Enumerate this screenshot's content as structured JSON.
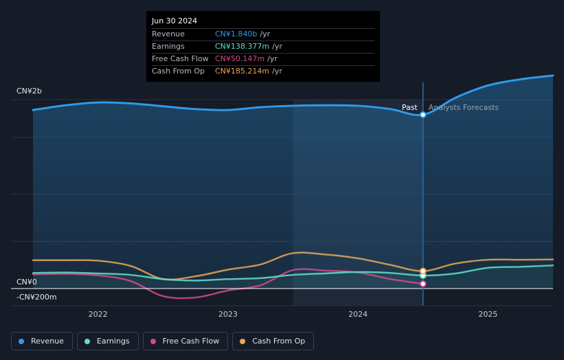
{
  "tooltip": {
    "date": "Jun 30 2024",
    "rows": [
      {
        "label": "Revenue",
        "value": "CN¥1.840b",
        "unit": "/yr"
      },
      {
        "label": "Earnings",
        "value": "CN¥138.377m",
        "unit": "/yr"
      },
      {
        "label": "Free Cash Flow",
        "value": "CN¥50.147m",
        "unit": "/yr"
      },
      {
        "label": "Cash From Op",
        "value": "CN¥185.214m",
        "unit": "/yr"
      }
    ]
  },
  "legend": {
    "items": [
      {
        "label": "Revenue"
      },
      {
        "label": "Earnings"
      },
      {
        "label": "Free Cash Flow"
      },
      {
        "label": "Cash From Op"
      }
    ]
  },
  "colors": {
    "revenue": "#2d9be8",
    "earnings": "#5fe0c8",
    "fcf": "#d24a8a",
    "cfo": "#e8a65a",
    "past_label": "#ffffff",
    "forecast_label": "#9aa0ab"
  },
  "chart_data": {
    "type": "line",
    "title": "",
    "xlabel": "",
    "ylabel": "",
    "unit": "CN¥ millions",
    "y_tick_labels": [
      {
        "value": 2000,
        "label": "CN¥2b"
      },
      {
        "value": 0,
        "label": "CN¥0"
      },
      {
        "value": -200,
        "label": "-CN¥200m"
      }
    ],
    "ylim": [
      -200,
      2400
    ],
    "xlim": [
      2021.5,
      2025.5
    ],
    "x_ticks": [
      {
        "value": 2022,
        "label": "2022"
      },
      {
        "value": 2023,
        "label": "2023"
      },
      {
        "value": 2024,
        "label": "2024"
      },
      {
        "value": 2025,
        "label": "2025"
      }
    ],
    "past_label": "Past",
    "forecast_label": "Analysts Forecasts",
    "past_highlight_start": 2023.5,
    "divider_x": 2024.5,
    "highlight_date": 2024.5,
    "series": [
      {
        "name": "Revenue",
        "key": "revenue",
        "points": [
          [
            2021.5,
            1890
          ],
          [
            2021.75,
            1940
          ],
          [
            2022.0,
            1970
          ],
          [
            2022.25,
            1960
          ],
          [
            2022.5,
            1930
          ],
          [
            2022.75,
            1900
          ],
          [
            2023.0,
            1890
          ],
          [
            2023.25,
            1920
          ],
          [
            2023.5,
            1935
          ],
          [
            2023.75,
            1940
          ],
          [
            2024.0,
            1935
          ],
          [
            2024.25,
            1900
          ],
          [
            2024.5,
            1840
          ],
          [
            2024.75,
            2020
          ],
          [
            2025.0,
            2150
          ],
          [
            2025.25,
            2215
          ],
          [
            2025.5,
            2255
          ]
        ]
      },
      {
        "name": "Earnings",
        "key": "earnings",
        "points": [
          [
            2021.5,
            165
          ],
          [
            2021.75,
            170
          ],
          [
            2022.0,
            160
          ],
          [
            2022.25,
            145
          ],
          [
            2022.5,
            100
          ],
          [
            2022.75,
            85
          ],
          [
            2023.0,
            100
          ],
          [
            2023.25,
            110
          ],
          [
            2023.5,
            145
          ],
          [
            2023.75,
            160
          ],
          [
            2024.0,
            175
          ],
          [
            2024.25,
            165
          ],
          [
            2024.5,
            138
          ],
          [
            2024.75,
            160
          ],
          [
            2025.0,
            220
          ],
          [
            2025.25,
            230
          ],
          [
            2025.5,
            245
          ]
        ]
      },
      {
        "name": "Free Cash Flow",
        "key": "fcf",
        "points": [
          [
            2021.5,
            150
          ],
          [
            2021.75,
            155
          ],
          [
            2022.0,
            140
          ],
          [
            2022.25,
            80
          ],
          [
            2022.5,
            -80
          ],
          [
            2022.75,
            -95
          ],
          [
            2023.0,
            -20
          ],
          [
            2023.25,
            35
          ],
          [
            2023.5,
            195
          ],
          [
            2023.75,
            190
          ],
          [
            2024.0,
            170
          ],
          [
            2024.25,
            100
          ],
          [
            2024.5,
            50
          ]
        ]
      },
      {
        "name": "Cash From Op",
        "key": "cfo",
        "points": [
          [
            2021.5,
            300
          ],
          [
            2021.75,
            300
          ],
          [
            2022.0,
            295
          ],
          [
            2022.25,
            240
          ],
          [
            2022.5,
            100
          ],
          [
            2022.75,
            130
          ],
          [
            2023.0,
            200
          ],
          [
            2023.25,
            255
          ],
          [
            2023.5,
            375
          ],
          [
            2023.75,
            360
          ],
          [
            2024.0,
            320
          ],
          [
            2024.25,
            250
          ],
          [
            2024.5,
            185
          ],
          [
            2024.75,
            265
          ],
          [
            2025.0,
            305
          ],
          [
            2025.25,
            305
          ],
          [
            2025.5,
            308
          ]
        ]
      }
    ]
  }
}
